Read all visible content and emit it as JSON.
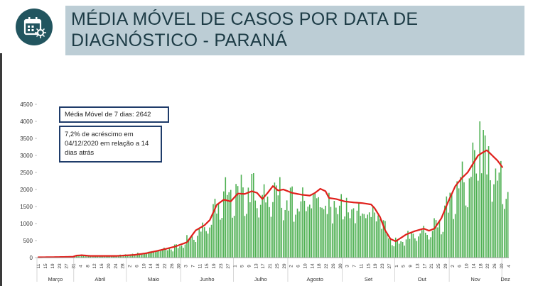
{
  "header": {
    "title": "MÉDIA MÓVEL DE CASOS POR DATA DE DIAGNÓSTICO - PARANÁ",
    "icon": "calendar-virus-icon",
    "colors": {
      "band": "#bccdd5",
      "icon_bg": "#22555f",
      "title": "#1c3b45"
    }
  },
  "notes": {
    "moving_average": "Média Móvel de 7 dias: 2642",
    "increase": "7,2% de acréscimo em 04/12/2020  em relação a 14 dias atrás"
  },
  "chart_data": {
    "type": "bar",
    "title": "",
    "xlabel": "",
    "ylabel": "",
    "ylim": [
      0,
      4500
    ],
    "yticks": [
      0,
      500,
      1000,
      1500,
      2000,
      2500,
      3000,
      3500,
      4000,
      4500
    ],
    "grid": false,
    "colors": {
      "bars": "#4caf50",
      "moving_average": "#e0201c"
    },
    "day_labels": [
      "11",
      "15",
      "19",
      "23",
      "27",
      "31",
      "4",
      "8",
      "12",
      "16",
      "20",
      "24",
      "28",
      "2",
      "6",
      "10",
      "14",
      "18",
      "22",
      "26",
      "30",
      "3",
      "7",
      "11",
      "15",
      "19",
      "23",
      "27",
      "1",
      "5",
      "9",
      "13",
      "17",
      "21",
      "25",
      "29",
      "2",
      "6",
      "10",
      "14",
      "18",
      "22",
      "26",
      "30",
      "3",
      "7",
      "11",
      "15",
      "19",
      "23",
      "27",
      "1",
      "5",
      "9",
      "13",
      "17",
      "21",
      "25",
      "29",
      "2",
      "6",
      "10",
      "14",
      "18",
      "22",
      "26",
      "30",
      "4"
    ],
    "months": [
      "Março",
      "Abril",
      "Maio",
      "Junho",
      "Julho",
      "Agosto",
      "Set",
      "Out",
      "Nov",
      "Dez"
    ],
    "month_start_day": [
      0,
      21,
      51,
      82,
      112,
      143,
      174,
      204,
      235,
      265
    ],
    "series": [
      {
        "type": "bar",
        "daily_cases_anchors": [
          [
            0,
            5
          ],
          [
            10,
            15
          ],
          [
            20,
            40
          ],
          [
            25,
            80
          ],
          [
            30,
            60
          ],
          [
            45,
            70
          ],
          [
            55,
            120
          ],
          [
            65,
            220
          ],
          [
            72,
            280
          ],
          [
            80,
            380
          ],
          [
            88,
            700
          ],
          [
            95,
            1000
          ],
          [
            100,
            1450
          ],
          [
            104,
            2050
          ],
          [
            108,
            2100
          ],
          [
            115,
            2200
          ],
          [
            120,
            2300
          ],
          [
            125,
            2250
          ],
          [
            130,
            1850
          ],
          [
            135,
            2300
          ],
          [
            140,
            2000
          ],
          [
            145,
            1900
          ],
          [
            150,
            1850
          ],
          [
            155,
            2000
          ],
          [
            160,
            2100
          ],
          [
            165,
            1800
          ],
          [
            170,
            1800
          ],
          [
            175,
            1700
          ],
          [
            180,
            1600
          ],
          [
            185,
            1650
          ],
          [
            190,
            1600
          ],
          [
            195,
            1450
          ],
          [
            198,
            1000
          ],
          [
            202,
            550
          ],
          [
            205,
            500
          ],
          [
            210,
            700
          ],
          [
            215,
            800
          ],
          [
            220,
            850
          ],
          [
            225,
            950
          ],
          [
            230,
            1300
          ],
          [
            235,
            1900
          ],
          [
            240,
            2400
          ],
          [
            245,
            2700
          ],
          [
            250,
            3200
          ],
          [
            253,
            3500
          ],
          [
            256,
            3300
          ],
          [
            260,
            2900
          ],
          [
            263,
            2600
          ],
          [
            265,
            2400
          ]
        ]
      },
      {
        "type": "line",
        "moving_average_anchors": [
          [
            0,
            10
          ],
          [
            10,
            15
          ],
          [
            20,
            25
          ],
          [
            22,
            60
          ],
          [
            25,
            70
          ],
          [
            30,
            50
          ],
          [
            45,
            50
          ],
          [
            55,
            80
          ],
          [
            62,
            130
          ],
          [
            70,
            220
          ],
          [
            78,
            320
          ],
          [
            85,
            450
          ],
          [
            90,
            800
          ],
          [
            95,
            950
          ],
          [
            98,
            1100
          ],
          [
            102,
            1550
          ],
          [
            106,
            1700
          ],
          [
            110,
            1650
          ],
          [
            114,
            1880
          ],
          [
            118,
            1870
          ],
          [
            122,
            1950
          ],
          [
            125,
            1900
          ],
          [
            128,
            1720
          ],
          [
            131,
            1900
          ],
          [
            134,
            2100
          ],
          [
            137,
            1970
          ],
          [
            140,
            2000
          ],
          [
            145,
            1900
          ],
          [
            150,
            1850
          ],
          [
            155,
            1820
          ],
          [
            158,
            1900
          ],
          [
            161,
            2020
          ],
          [
            164,
            1950
          ],
          [
            166,
            1750
          ],
          [
            170,
            1720
          ],
          [
            175,
            1650
          ],
          [
            180,
            1620
          ],
          [
            185,
            1600
          ],
          [
            190,
            1560
          ],
          [
            192,
            1450
          ],
          [
            195,
            1200
          ],
          [
            198,
            800
          ],
          [
            201,
            550
          ],
          [
            204,
            480
          ],
          [
            207,
            580
          ],
          [
            210,
            680
          ],
          [
            215,
            780
          ],
          [
            220,
            850
          ],
          [
            223,
            790
          ],
          [
            226,
            850
          ],
          [
            230,
            1150
          ],
          [
            234,
            1650
          ],
          [
            238,
            2100
          ],
          [
            242,
            2350
          ],
          [
            245,
            2500
          ],
          [
            248,
            2750
          ],
          [
            251,
            3000
          ],
          [
            254,
            3100
          ],
          [
            256,
            3150
          ],
          [
            259,
            3000
          ],
          [
            262,
            2850
          ],
          [
            265,
            2642
          ]
        ]
      }
    ]
  }
}
